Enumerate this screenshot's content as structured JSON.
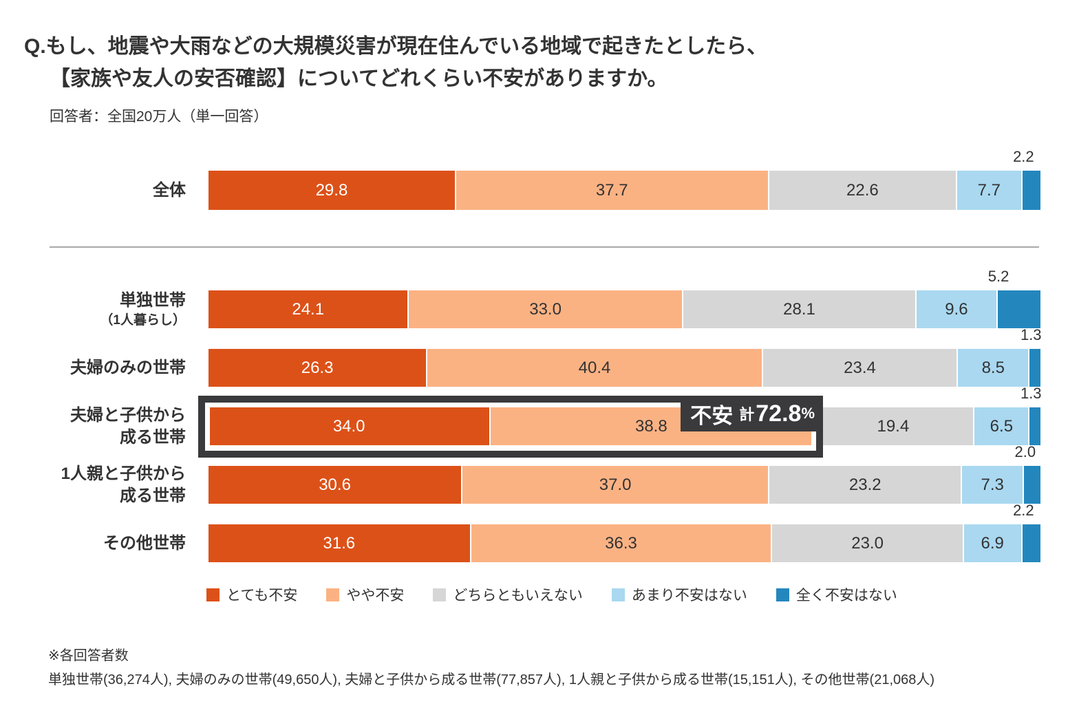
{
  "title": {
    "line1": "Q.もし、地震や大雨などの大規模災害が現在住んでいる地域で起きたとしたら、",
    "line2": "【家族や友人の安否確認】についてどれくらい不安がありますか。"
  },
  "subtitle": "回答者：全国20万人（単一回答）",
  "chart_data": {
    "type": "bar",
    "orientation": "horizontal-stacked",
    "unit": "%",
    "xlim": [
      0,
      100
    ],
    "grid": false,
    "legend_position": "bottom",
    "series_labels": [
      "とても不安",
      "やや不安",
      "どちらともいえない",
      "あまり不安はない",
      "全く不安はない"
    ],
    "series_colors": [
      "#dc5118",
      "#fbb283",
      "#d6d6d6",
      "#a9d8f0",
      "#2387be"
    ],
    "rows": [
      {
        "label_lines": [
          "全体"
        ],
        "small_line2": false,
        "values": [
          29.8,
          37.7,
          22.6,
          7.7,
          2.2
        ]
      },
      {
        "label_lines": [
          "単独世帯",
          "（1人暮らし）"
        ],
        "small_line2": true,
        "values": [
          24.1,
          33.0,
          28.1,
          9.6,
          5.2
        ]
      },
      {
        "label_lines": [
          "夫婦のみの世帯"
        ],
        "small_line2": false,
        "values": [
          26.3,
          40.4,
          23.4,
          8.5,
          1.3
        ]
      },
      {
        "label_lines": [
          "夫婦と子供から",
          "成る世帯"
        ],
        "small_line2": false,
        "values": [
          34.0,
          38.8,
          19.4,
          6.5,
          1.3
        ],
        "highlight": true
      },
      {
        "label_lines": [
          "1人親と子供から",
          "成る世帯"
        ],
        "small_line2": false,
        "values": [
          30.6,
          37.0,
          23.2,
          7.3,
          2.0
        ]
      },
      {
        "label_lines": [
          "その他世帯"
        ],
        "small_line2": false,
        "values": [
          31.6,
          36.3,
          23.0,
          6.9,
          2.2
        ]
      }
    ],
    "annotation": {
      "label": "不安",
      "prefix": "計",
      "value": "72.8",
      "unit": "%",
      "total_of_first_two_series": 72.8
    }
  },
  "footnote": {
    "line1": "※各回答者数",
    "line2": "単独世帯(36,274人), 夫婦のみの世帯(49,650人), 夫婦と子供から成る世帯(77,857人), 1人親と子供から成る世帯(15,151人), その他世帯(21,068人)"
  }
}
